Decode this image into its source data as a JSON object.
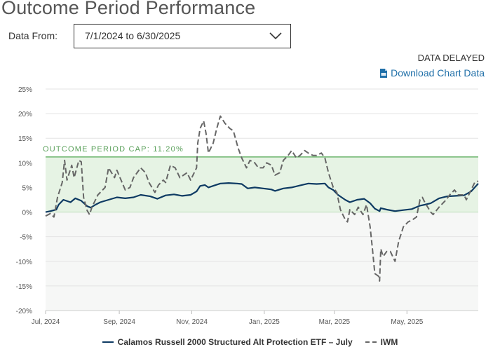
{
  "header": {
    "title": "Outcome Period Performance",
    "data_from_label": "Data From:",
    "date_range": "7/1/2024 to 6/30/2025",
    "data_delayed": "DATA DELAYED",
    "download_label": "Download Chart Data"
  },
  "colors": {
    "fund": "#0e3a63",
    "iwm": "#666666",
    "cap_line": "#6db56d",
    "cap_band": "#e6f3e4",
    "cap_label": "#5aa05a",
    "link": "#1f6fa8"
  },
  "chart_data": {
    "type": "line",
    "title": "",
    "xlabel": "",
    "ylabel": "",
    "ylim": [
      -20,
      25
    ],
    "yticks": [
      -20,
      -15,
      -10,
      -5,
      0,
      5,
      10,
      15,
      20,
      25
    ],
    "ytick_labels": [
      "-20%",
      "-15%",
      "-10%",
      "-5%",
      "0%",
      "5%",
      "10%",
      "15%",
      "20%",
      "25%"
    ],
    "x_range": [
      "2024-07-01",
      "2025-06-30"
    ],
    "x_ticks": [
      {
        "date": "2024-07-01",
        "label": "Jul, 2024"
      },
      {
        "date": "2024-09-01",
        "label": "Sep, 2024"
      },
      {
        "date": "2024-11-01",
        "label": "Nov, 2024"
      },
      {
        "date": "2025-01-01",
        "label": "Jan, 2025"
      },
      {
        "date": "2025-03-01",
        "label": "Mar, 2025"
      },
      {
        "date": "2025-05-01",
        "label": "May, 2025"
      }
    ],
    "grid": true,
    "legend_position": "bottom",
    "cap": {
      "value": 11.2,
      "label": "OUTCOME PERIOD CAP: 11.20%"
    },
    "series": [
      {
        "name": "Calamos Russell 2000 Structured Alt Protection ETF – July",
        "style": "solid",
        "points": [
          [
            "2024-07-01",
            0.0
          ],
          [
            "2024-07-05",
            0.2
          ],
          [
            "2024-07-10",
            0.5
          ],
          [
            "2024-07-12",
            1.5
          ],
          [
            "2024-07-16",
            2.5
          ],
          [
            "2024-07-22",
            2.0
          ],
          [
            "2024-07-26",
            2.8
          ],
          [
            "2024-07-31",
            2.3
          ],
          [
            "2024-08-05",
            1.2
          ],
          [
            "2024-08-08",
            0.9
          ],
          [
            "2024-08-12",
            1.5
          ],
          [
            "2024-08-16",
            2.0
          ],
          [
            "2024-08-23",
            2.5
          ],
          [
            "2024-08-30",
            3.0
          ],
          [
            "2024-09-06",
            2.8
          ],
          [
            "2024-09-13",
            3.0
          ],
          [
            "2024-09-19",
            3.5
          ],
          [
            "2024-09-27",
            3.2
          ],
          [
            "2024-10-03",
            2.7
          ],
          [
            "2024-10-10",
            3.4
          ],
          [
            "2024-10-17",
            3.6
          ],
          [
            "2024-10-24",
            3.3
          ],
          [
            "2024-10-31",
            3.5
          ],
          [
            "2024-11-05",
            4.2
          ],
          [
            "2024-11-08",
            5.3
          ],
          [
            "2024-11-12",
            5.5
          ],
          [
            "2024-11-15",
            5.0
          ],
          [
            "2024-11-20",
            5.4
          ],
          [
            "2024-11-25",
            5.8
          ],
          [
            "2024-12-02",
            5.9
          ],
          [
            "2024-12-09",
            5.8
          ],
          [
            "2024-12-13",
            5.7
          ],
          [
            "2024-12-18",
            4.8
          ],
          [
            "2024-12-24",
            5.0
          ],
          [
            "2024-12-31",
            4.8
          ],
          [
            "2025-01-07",
            4.6
          ],
          [
            "2025-01-10",
            4.3
          ],
          [
            "2025-01-17",
            4.8
          ],
          [
            "2025-01-24",
            5.0
          ],
          [
            "2025-01-31",
            5.4
          ],
          [
            "2025-02-07",
            5.8
          ],
          [
            "2025-02-14",
            5.7
          ],
          [
            "2025-02-21",
            5.8
          ],
          [
            "2025-02-24",
            5.0
          ],
          [
            "2025-02-28",
            4.5
          ],
          [
            "2025-03-04",
            3.5
          ],
          [
            "2025-03-10",
            2.5
          ],
          [
            "2025-03-14",
            2.0
          ],
          [
            "2025-03-20",
            2.5
          ],
          [
            "2025-03-26",
            2.7
          ],
          [
            "2025-03-31",
            1.8
          ],
          [
            "2025-04-04",
            0.7
          ],
          [
            "2025-04-08",
            0.2
          ],
          [
            "2025-04-09",
            0.8
          ],
          [
            "2025-04-14",
            0.5
          ],
          [
            "2025-04-21",
            0.2
          ],
          [
            "2025-04-28",
            0.4
          ],
          [
            "2025-05-05",
            0.6
          ],
          [
            "2025-05-12",
            1.3
          ],
          [
            "2025-05-16",
            1.5
          ],
          [
            "2025-05-21",
            1.8
          ],
          [
            "2025-05-28",
            2.8
          ],
          [
            "2025-06-04",
            3.2
          ],
          [
            "2025-06-11",
            3.3
          ],
          [
            "2025-06-18",
            3.4
          ],
          [
            "2025-06-24",
            4.2
          ],
          [
            "2025-06-30",
            5.8
          ]
        ]
      },
      {
        "name": "IWM",
        "style": "dashed",
        "points": [
          [
            "2024-07-01",
            -0.8
          ],
          [
            "2024-07-05",
            -0.3
          ],
          [
            "2024-07-08",
            -1.0
          ],
          [
            "2024-07-11",
            3.0
          ],
          [
            "2024-07-15",
            6.0
          ],
          [
            "2024-07-17",
            10.5
          ],
          [
            "2024-07-19",
            6.5
          ],
          [
            "2024-07-23",
            9.5
          ],
          [
            "2024-07-25",
            7.0
          ],
          [
            "2024-07-29",
            10.5
          ],
          [
            "2024-07-31",
            10.2
          ],
          [
            "2024-08-02",
            3.0
          ],
          [
            "2024-08-05",
            0.3
          ],
          [
            "2024-08-07",
            -0.5
          ],
          [
            "2024-08-09",
            1.0
          ],
          [
            "2024-08-14",
            3.5
          ],
          [
            "2024-08-20",
            5.0
          ],
          [
            "2024-08-23",
            9.0
          ],
          [
            "2024-08-28",
            7.0
          ],
          [
            "2024-08-30",
            8.5
          ],
          [
            "2024-09-06",
            4.5
          ],
          [
            "2024-09-10",
            5.0
          ],
          [
            "2024-09-13",
            7.0
          ],
          [
            "2024-09-19",
            9.0
          ],
          [
            "2024-09-23",
            8.0
          ],
          [
            "2024-09-26",
            6.0
          ],
          [
            "2024-10-01",
            4.0
          ],
          [
            "2024-10-04",
            5.5
          ],
          [
            "2024-10-08",
            6.5
          ],
          [
            "2024-10-10",
            6.0
          ],
          [
            "2024-10-14",
            9.5
          ],
          [
            "2024-10-18",
            9.0
          ],
          [
            "2024-10-22",
            7.0
          ],
          [
            "2024-10-28",
            8.0
          ],
          [
            "2024-10-31",
            6.5
          ],
          [
            "2024-11-01",
            7.0
          ],
          [
            "2024-11-05",
            9.0
          ],
          [
            "2024-11-06",
            14.0
          ],
          [
            "2024-11-08",
            17.0
          ],
          [
            "2024-11-11",
            18.5
          ],
          [
            "2024-11-13",
            16.0
          ],
          [
            "2024-11-15",
            12.0
          ],
          [
            "2024-11-19",
            14.0
          ],
          [
            "2024-11-22",
            17.0
          ],
          [
            "2024-11-25",
            19.5
          ],
          [
            "2024-11-29",
            18.0
          ],
          [
            "2024-12-03",
            17.0
          ],
          [
            "2024-12-06",
            16.5
          ],
          [
            "2024-12-10",
            13.0
          ],
          [
            "2024-12-13",
            11.0
          ],
          [
            "2024-12-17",
            9.0
          ],
          [
            "2024-12-18",
            9.5
          ],
          [
            "2024-12-20",
            10.5
          ],
          [
            "2024-12-24",
            10.0
          ],
          [
            "2024-12-27",
            9.0
          ],
          [
            "2024-12-31",
            9.0
          ],
          [
            "2025-01-03",
            10.0
          ],
          [
            "2025-01-07",
            9.5
          ],
          [
            "2025-01-10",
            7.5
          ],
          [
            "2025-01-14",
            8.0
          ],
          [
            "2025-01-17",
            10.5
          ],
          [
            "2025-01-21",
            11.5
          ],
          [
            "2025-01-24",
            12.5
          ],
          [
            "2025-01-28",
            11.0
          ],
          [
            "2025-01-31",
            11.5
          ],
          [
            "2025-02-04",
            12.5
          ],
          [
            "2025-02-07",
            12.0
          ],
          [
            "2025-02-11",
            11.5
          ],
          [
            "2025-02-14",
            11.5
          ],
          [
            "2025-02-18",
            12.0
          ],
          [
            "2025-02-21",
            11.0
          ],
          [
            "2025-02-24",
            8.0
          ],
          [
            "2025-02-28",
            5.0
          ],
          [
            "2025-03-03",
            4.0
          ],
          [
            "2025-03-06",
            0.5
          ],
          [
            "2025-03-10",
            -1.5
          ],
          [
            "2025-03-12",
            -2.0
          ],
          [
            "2025-03-14",
            0.5
          ],
          [
            "2025-03-18",
            -0.5
          ],
          [
            "2025-03-21",
            1.0
          ],
          [
            "2025-03-25",
            -0.5
          ],
          [
            "2025-03-28",
            1.5
          ],
          [
            "2025-03-31",
            -3.0
          ],
          [
            "2025-04-02",
            -7.5
          ],
          [
            "2025-04-04",
            -12.5
          ],
          [
            "2025-04-07",
            -13.0
          ],
          [
            "2025-04-08",
            -14.0
          ],
          [
            "2025-04-09",
            -7.5
          ],
          [
            "2025-04-11",
            -9.0
          ],
          [
            "2025-04-14",
            -8.0
          ],
          [
            "2025-04-17",
            -8.0
          ],
          [
            "2025-04-21",
            -10.0
          ],
          [
            "2025-04-24",
            -6.0
          ],
          [
            "2025-04-28",
            -3.0
          ],
          [
            "2025-05-02",
            -2.0
          ],
          [
            "2025-05-06",
            -1.5
          ],
          [
            "2025-05-09",
            -1.0
          ],
          [
            "2025-05-12",
            2.5
          ],
          [
            "2025-05-14",
            3.0
          ],
          [
            "2025-05-16",
            2.0
          ],
          [
            "2025-05-21",
            0.0
          ],
          [
            "2025-05-23",
            -0.5
          ],
          [
            "2025-05-28",
            1.0
          ],
          [
            "2025-06-03",
            2.5
          ],
          [
            "2025-06-06",
            3.5
          ],
          [
            "2025-06-10",
            4.5
          ],
          [
            "2025-06-13",
            3.5
          ],
          [
            "2025-06-18",
            3.5
          ],
          [
            "2025-06-20",
            2.5
          ],
          [
            "2025-06-24",
            4.5
          ],
          [
            "2025-06-27",
            6.0
          ],
          [
            "2025-06-30",
            6.3
          ]
        ]
      }
    ]
  }
}
